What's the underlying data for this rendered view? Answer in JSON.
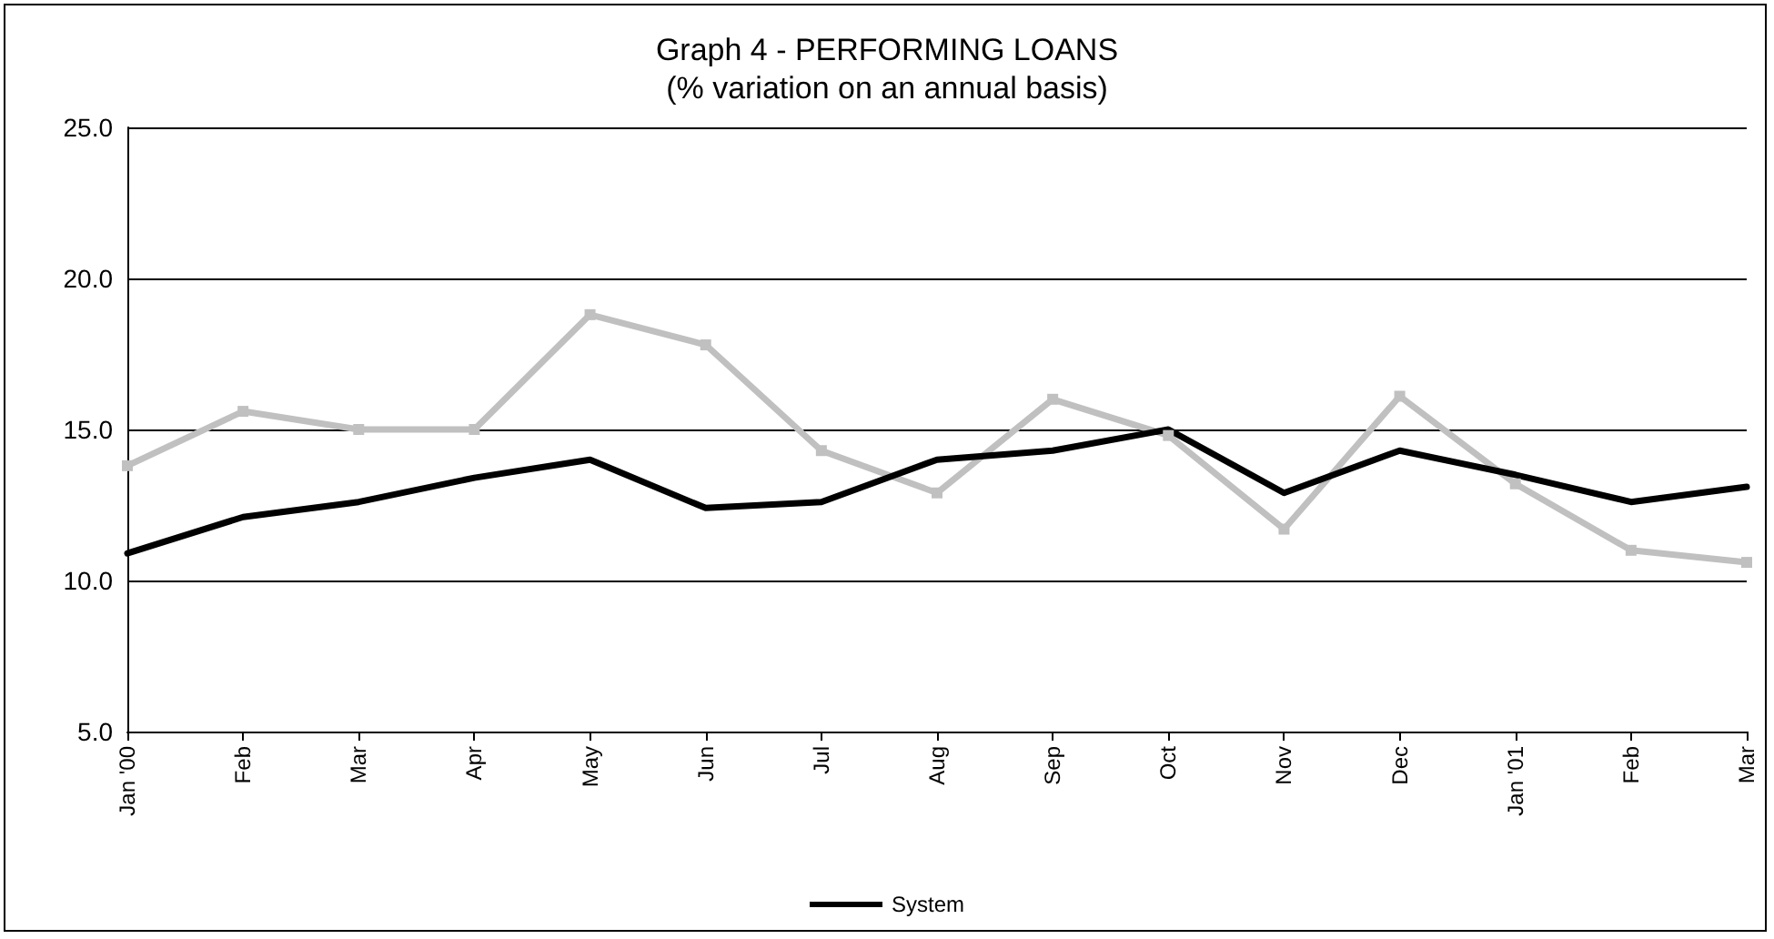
{
  "chart_data": {
    "type": "line",
    "title": "Graph 4 - PERFORMING LOANS",
    "subtitle": "(% variation on an annual basis)",
    "categories": [
      "Jan '00",
      "Feb",
      "Mar",
      "Apr",
      "May",
      "Jun",
      "Jul",
      "Aug",
      "Sep",
      "Oct",
      "Nov",
      "Dec",
      "Jan '01",
      "Feb",
      "Mar"
    ],
    "series": [
      {
        "color": "#c0c0c0",
        "marker": "square",
        "values": [
          13.8,
          15.6,
          15.0,
          15.0,
          18.8,
          17.8,
          14.3,
          12.9,
          16.0,
          14.8,
          11.7,
          16.1,
          13.2,
          11.0,
          10.6
        ]
      },
      {
        "name": "System",
        "color": "#000000",
        "marker": "none",
        "values": [
          10.9,
          12.1,
          12.6,
          13.4,
          14.0,
          12.4,
          12.6,
          14.0,
          14.3,
          15.0,
          12.9,
          14.3,
          13.5,
          12.6,
          13.1
        ]
      }
    ],
    "ylim": [
      5,
      25
    ],
    "yticks": [
      {
        "value": 5,
        "label": "5.0"
      },
      {
        "value": 10,
        "label": "10.0"
      },
      {
        "value": 15,
        "label": "15.0"
      },
      {
        "value": 20,
        "label": "20.0"
      },
      {
        "value": 25,
        "label": "25.0"
      }
    ],
    "grid": "y",
    "legend": "bottom",
    "line_style": "solid"
  }
}
